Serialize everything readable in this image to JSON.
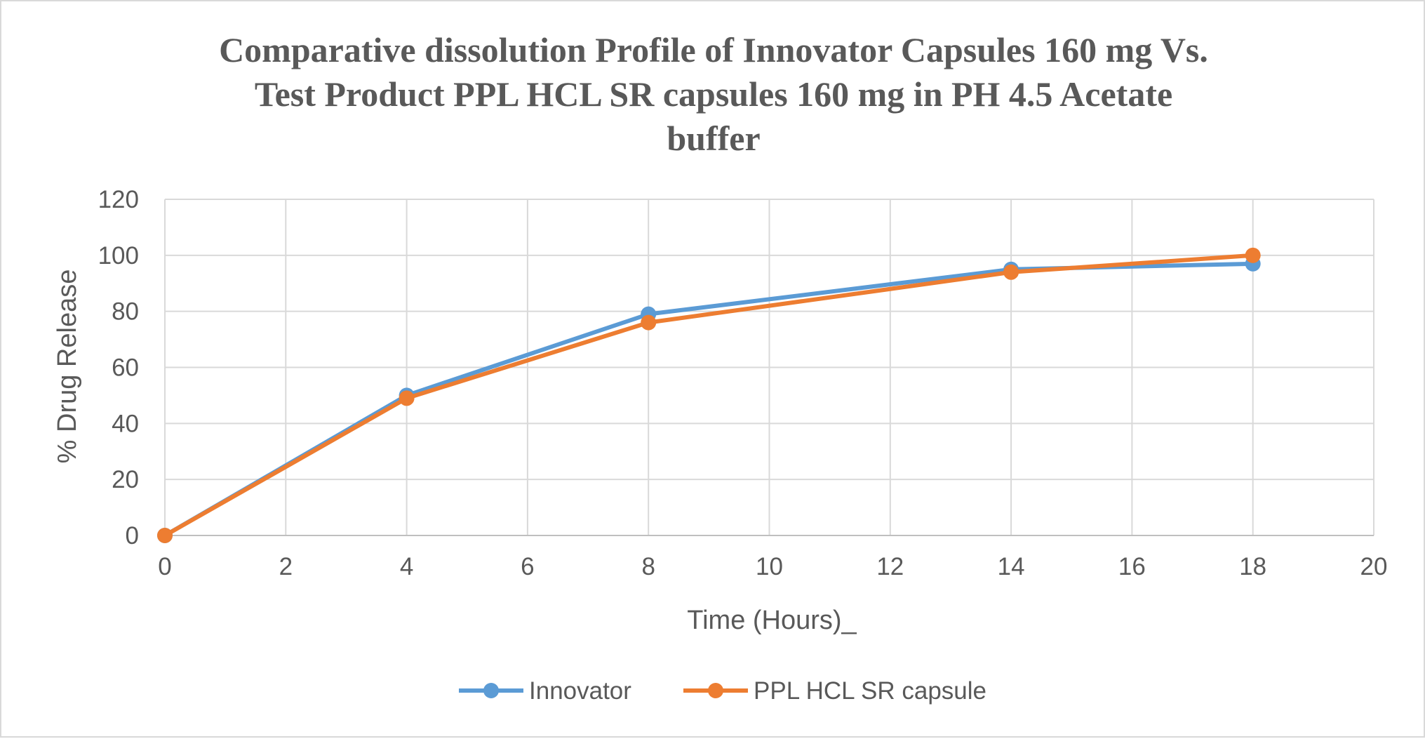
{
  "chart_data": {
    "type": "line",
    "title_lines": [
      "Comparative dissolution Profile of Innovator Capsules 160 mg Vs.",
      "Test Product PPL HCL SR capsules 160 mg in PH 4.5 Acetate",
      "buffer"
    ],
    "xlabel": "Time (Hours)_",
    "ylabel": "% Drug Release",
    "xlim": [
      0,
      20
    ],
    "ylim": [
      0,
      120
    ],
    "x_ticks": [
      0,
      2,
      4,
      6,
      8,
      10,
      12,
      14,
      16,
      18,
      20
    ],
    "y_ticks": [
      0,
      20,
      40,
      60,
      80,
      100,
      120
    ],
    "grid": true,
    "legend_position": "bottom",
    "series": [
      {
        "name": "Innovator",
        "color": "#5b9bd5",
        "x": [
          0,
          4,
          8,
          14,
          18
        ],
        "y": [
          0,
          50,
          79,
          95,
          97
        ]
      },
      {
        "name": "PPL HCL SR capsule",
        "color": "#ed7d31",
        "x": [
          0,
          4,
          8,
          14,
          18
        ],
        "y": [
          0,
          49,
          76,
          94,
          100
        ]
      }
    ]
  }
}
